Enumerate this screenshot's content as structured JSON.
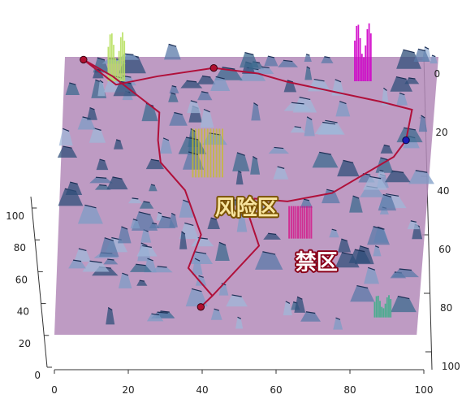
{
  "chart_data": {
    "type": "surface",
    "colors": {
      "surface_base": "#b38ab8",
      "surface_high": "#2f5f8a",
      "path": "#b0103a",
      "waypoint": "#b01030",
      "goal": "#1a1ab8",
      "risk_zone": "#c8c020",
      "forbidden_zone": "#d80080",
      "risk_label_fill": "#f7e4a0",
      "risk_label_stroke": "#7a5200",
      "forbidden_label_fill": "#ffffff",
      "forbidden_label_stroke": "#8a0018"
    },
    "x_axis": {
      "ticks": [
        0,
        20,
        40,
        60,
        80,
        100
      ],
      "range": [
        0,
        100
      ]
    },
    "y_axis": {
      "ticks": [
        0,
        20,
        40,
        60,
        80,
        100
      ],
      "range": [
        0,
        100
      ]
    },
    "z_axis": {
      "ticks": [
        0,
        20,
        40,
        60,
        80,
        100
      ],
      "range": [
        0,
        100
      ]
    },
    "zones": [
      {
        "label": "风险区",
        "x": [
          35,
          43
        ],
        "y": [
          20,
          52
        ],
        "height": 60,
        "kind": "risk"
      },
      {
        "label": "禁区",
        "x": [
          62,
          68
        ],
        "y": [
          42,
          55
        ],
        "height": 40,
        "kind": "forbidden"
      }
    ],
    "path": [
      [
        5,
        1
      ],
      [
        13,
        7
      ],
      [
        20,
        14
      ],
      [
        26,
        20
      ],
      [
        26,
        30
      ],
      [
        27,
        38
      ],
      [
        34,
        48
      ],
      [
        39,
        64
      ],
      [
        36,
        76
      ],
      [
        43,
        86
      ],
      [
        40,
        90
      ],
      [
        43,
        86
      ],
      [
        55,
        68
      ],
      [
        52,
        58
      ],
      [
        53,
        51
      ],
      [
        62,
        52
      ],
      [
        74,
        49
      ],
      [
        90,
        36
      ],
      [
        93,
        30
      ],
      [
        94,
        19
      ],
      [
        85,
        16
      ],
      [
        60,
        9
      ],
      [
        52,
        6
      ],
      [
        40,
        4
      ],
      [
        25,
        7
      ],
      [
        14,
        10
      ],
      [
        5,
        1
      ]
    ],
    "waypoints": [
      [
        5,
        1
      ],
      [
        40,
        4
      ],
      [
        40,
        90
      ]
    ],
    "goal": [
      93,
      30
    ],
    "peaks": [
      {
        "x": 14,
        "y": 0,
        "h": 55,
        "color": "#b8e060"
      },
      {
        "x": 80,
        "y": 0,
        "h": 65,
        "color": "#d000c8"
      },
      {
        "x": 90,
        "y": 85,
        "h": 25,
        "color": "#3fae8a"
      }
    ]
  }
}
